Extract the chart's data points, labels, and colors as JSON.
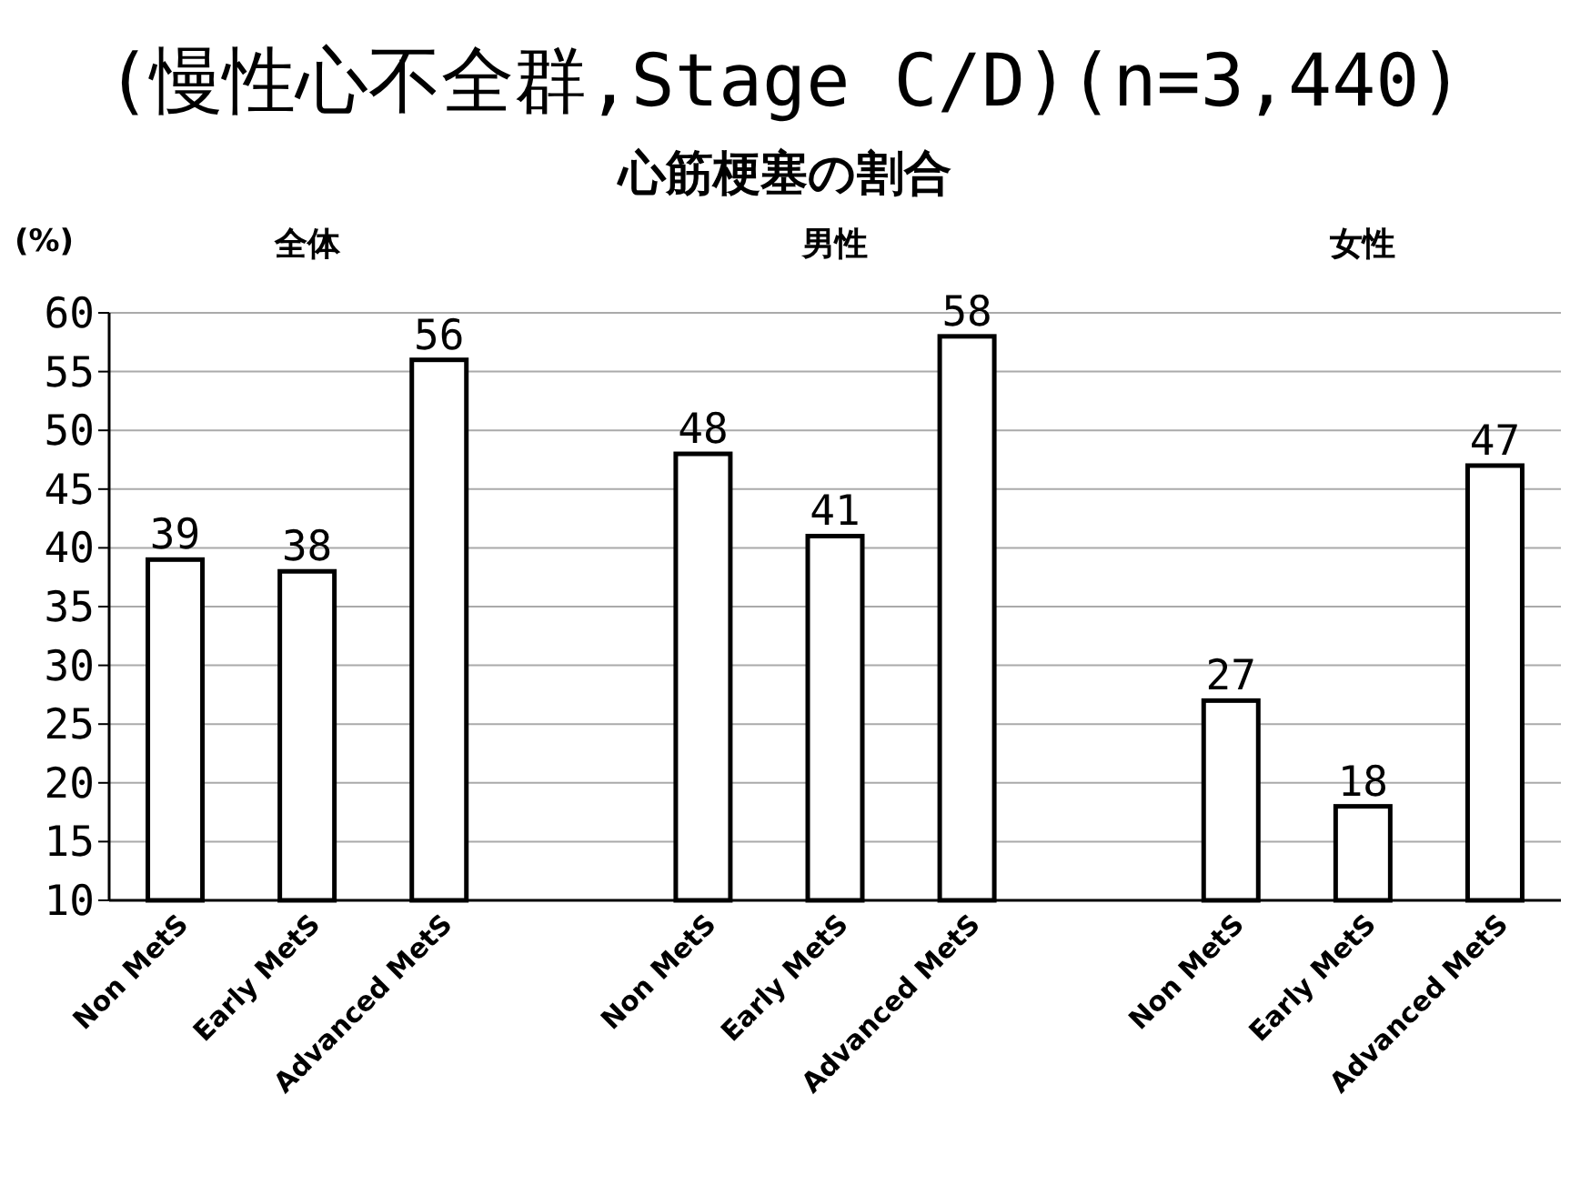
{
  "chart_data": {
    "type": "bar",
    "title": "(慢性心不全群,Stage C/D)(n=3,440)",
    "subtitle": "心筋梗塞の割合",
    "ylabel": "(%)",
    "annotations": [
      "全体",
      "男性",
      "女性"
    ],
    "categories": [
      "Non MetS",
      "Early MetS",
      "Advanced MetS",
      null,
      "Non MetS",
      "Early MetS",
      "Advanced MetS",
      null,
      "Non MetS",
      "Early MetS",
      "Advanced MetS"
    ],
    "values": [
      39,
      38,
      56,
      null,
      48,
      41,
      58,
      null,
      27,
      18,
      47
    ],
    "color": "#ffffff",
    "ylim": [
      10,
      60
    ],
    "yticks": [
      10,
      15,
      20,
      25,
      30,
      35,
      40,
      45,
      50,
      55,
      60
    ],
    "grid": "y",
    "data_labels": true
  }
}
